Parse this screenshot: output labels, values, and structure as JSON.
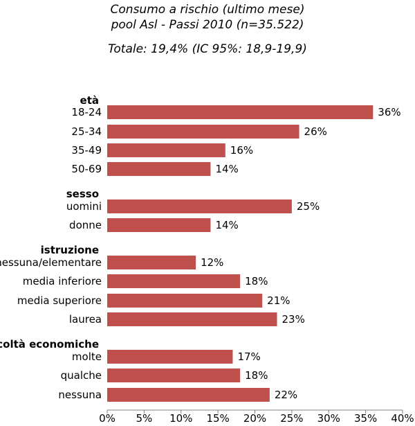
{
  "header": {
    "title": "Consumo a rischio (ultimo mese)",
    "subtitle": "pool Asl - Passi 2010 (n=35.522)",
    "total": "Totale: 19,4% (IC 95%: 18,9-19,9)"
  },
  "chart_data": {
    "type": "bar",
    "orientation": "horizontal",
    "title": "Consumo a rischio (ultimo mese)",
    "subtitle": "pool Asl - Passi 2010 (n=35.522)",
    "annotation": "Totale: 19,4% (IC 95%: 18,9-19,9)",
    "xlim": [
      0,
      40
    ],
    "x_ticks": [
      "0%",
      "5%",
      "10%",
      "15%",
      "20%",
      "25%",
      "30%",
      "35%",
      "40%"
    ],
    "bar_color": "#c0504d",
    "groups": [
      {
        "name": "età",
        "categories": [
          "18-24",
          "25-34",
          "35-49",
          "50-69"
        ],
        "values": [
          36,
          26,
          16,
          14
        ],
        "labels": [
          "36%",
          "26%",
          "16%",
          "14%"
        ]
      },
      {
        "name": "sesso",
        "categories": [
          "uomini",
          "donne"
        ],
        "values": [
          25,
          14
        ],
        "labels": [
          "25%",
          "14%"
        ]
      },
      {
        "name": "istruzione",
        "categories": [
          "nessuna/elementare",
          "media inferiore",
          "media superiore",
          "laurea"
        ],
        "values": [
          12,
          18,
          21,
          23
        ],
        "labels": [
          "12%",
          "18%",
          "21%",
          "23%"
        ]
      },
      {
        "name": "difficoltà economiche",
        "categories": [
          "molte",
          "qualche",
          "nessuna"
        ],
        "values": [
          17,
          18,
          22
        ],
        "labels": [
          "17%",
          "18%",
          "22%"
        ]
      }
    ]
  }
}
